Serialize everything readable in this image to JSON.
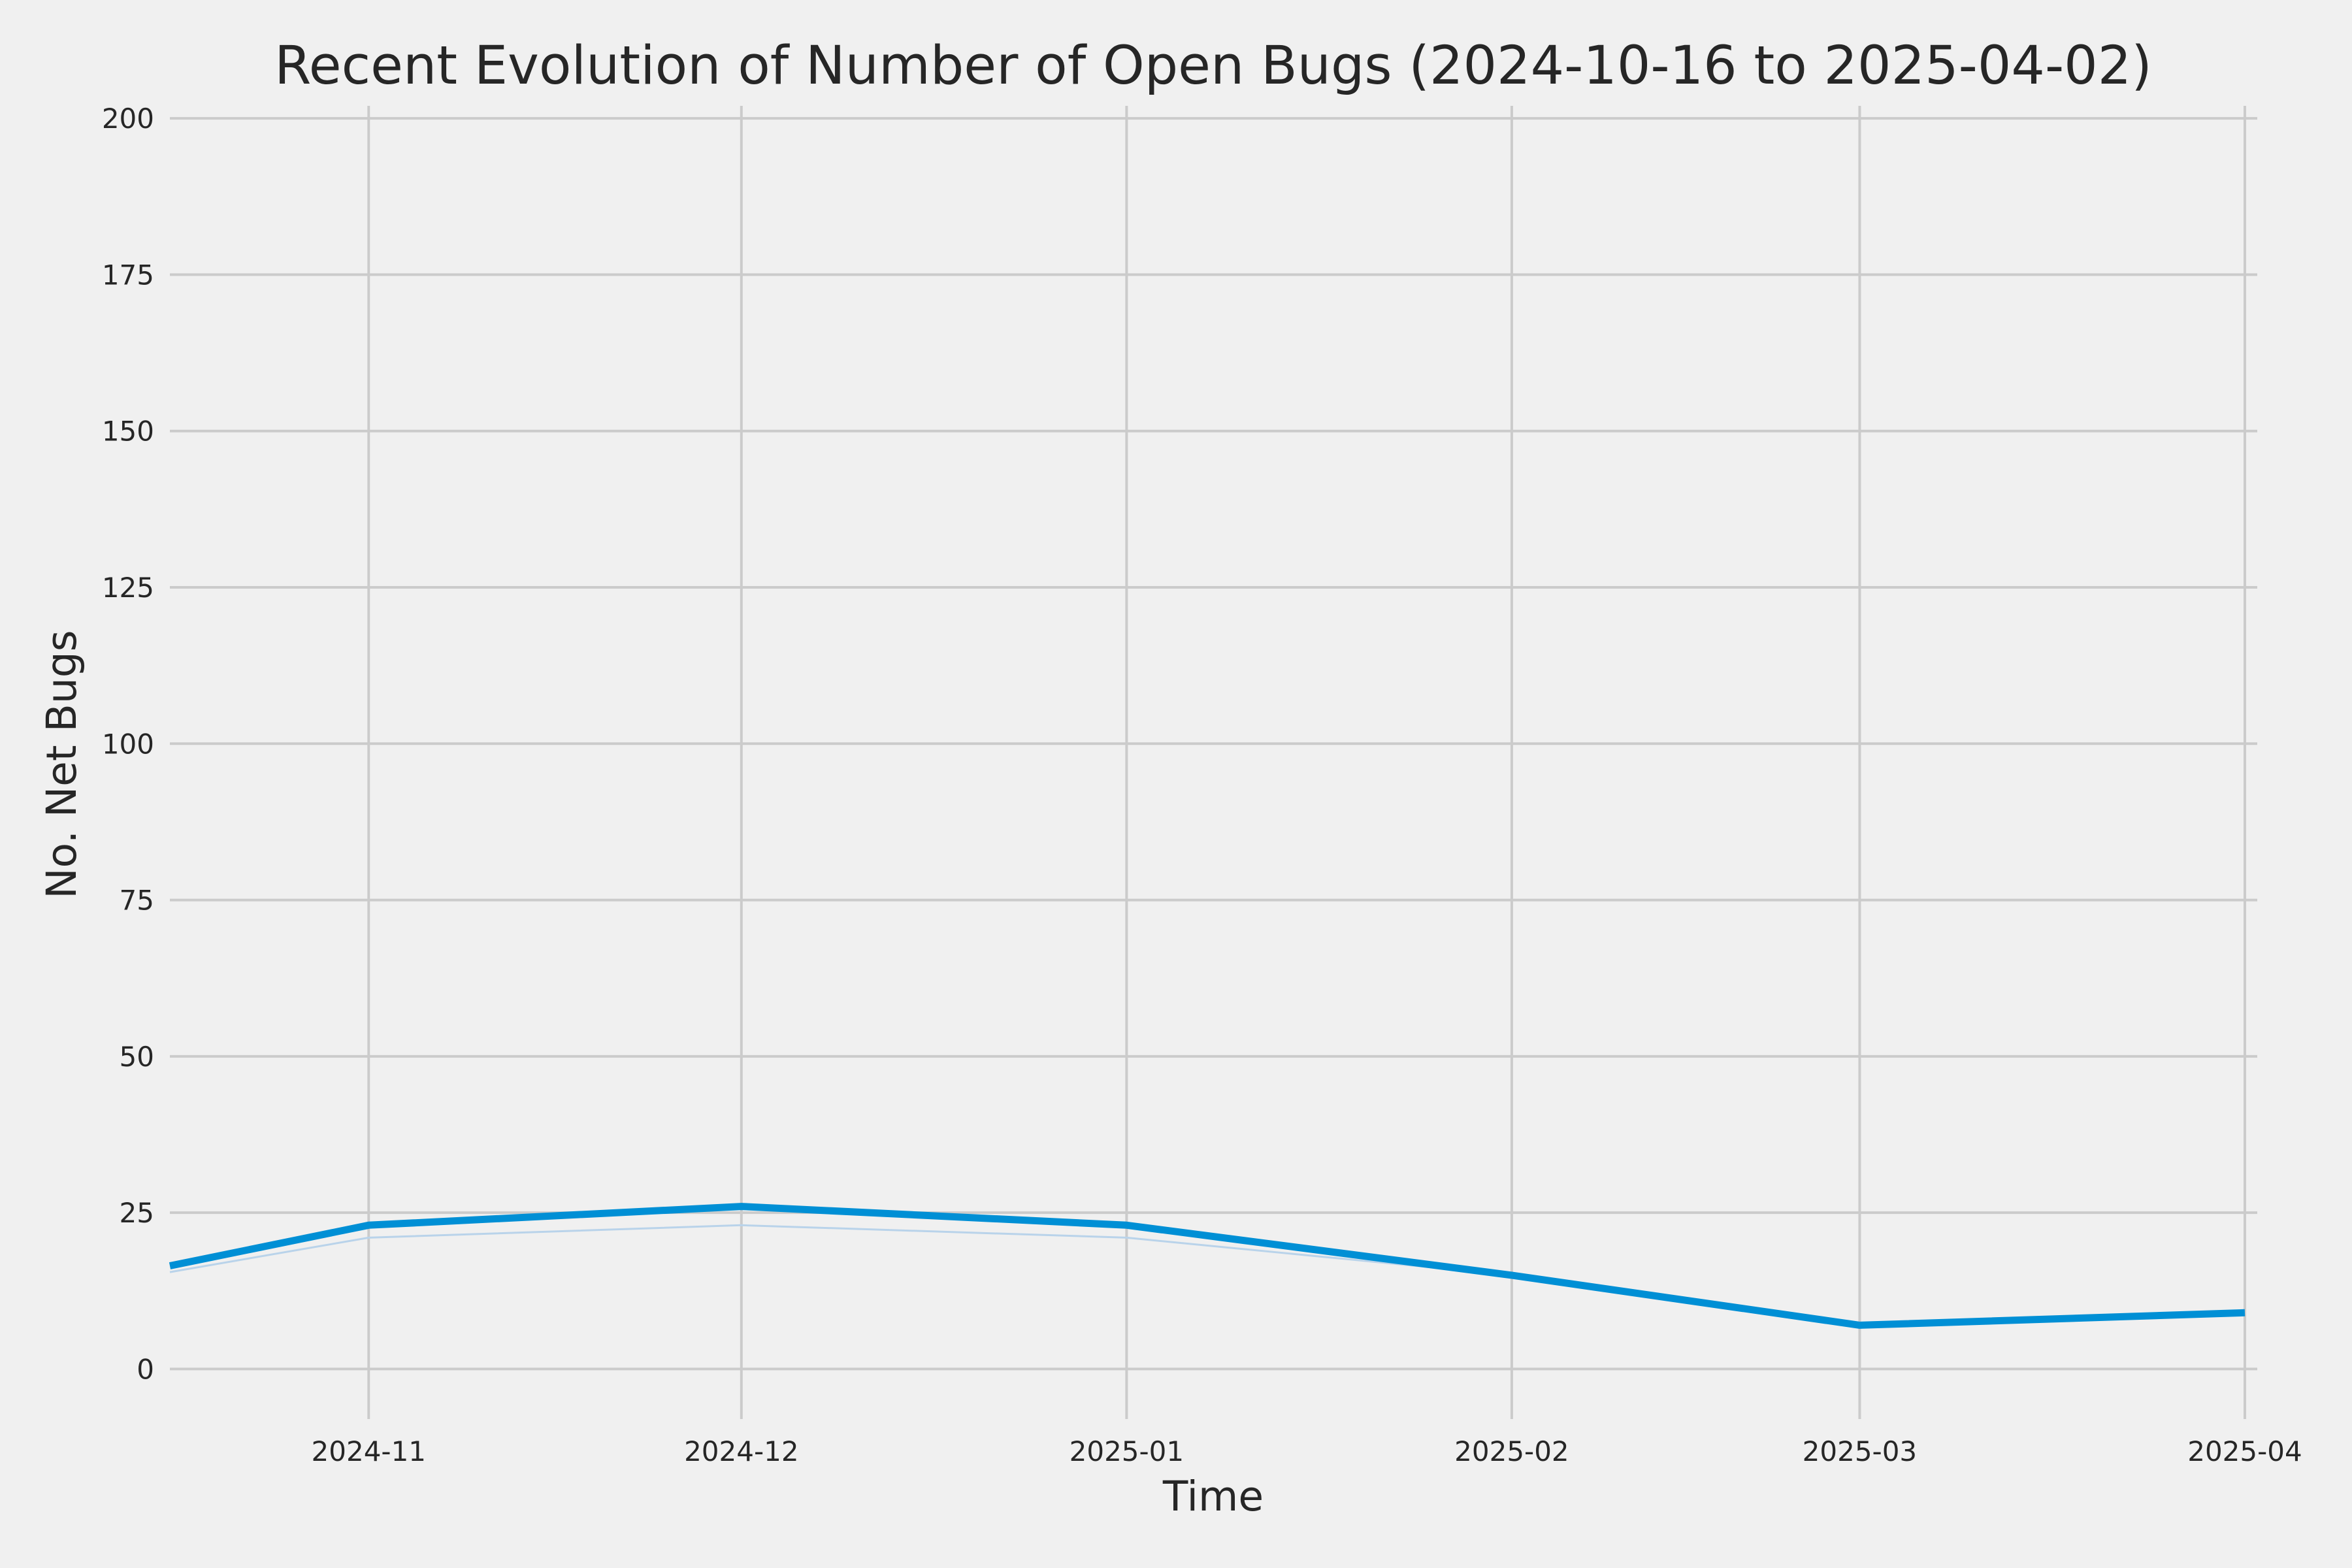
{
  "chart_data": {
    "type": "line",
    "title": "Recent Evolution of Number of Open Bugs (2024-10-16 to 2025-04-02)",
    "xlabel": "Time",
    "ylabel": "No. Net Bugs",
    "x_ticks": [
      "2024-11",
      "2024-12",
      "2025-01",
      "2025-02",
      "2025-03",
      "2025-04"
    ],
    "y_ticks": [
      0,
      25,
      50,
      75,
      100,
      125,
      150,
      175,
      200
    ],
    "xlim": [
      "2024-10-16",
      "2025-04-02"
    ],
    "ylim": [
      -8,
      202
    ],
    "grid": true,
    "series": [
      {
        "role": "main",
        "color": "#008fd5",
        "points": [
          {
            "x": "2024-10-16",
            "y": 16.5
          },
          {
            "x": "2024-11-01",
            "y": 23
          },
          {
            "x": "2024-12-01",
            "y": 26
          },
          {
            "x": "2025-01-01",
            "y": 23
          },
          {
            "x": "2025-02-01",
            "y": 15
          },
          {
            "x": "2025-03-01",
            "y": 7
          },
          {
            "x": "2025-04-01",
            "y": 9
          }
        ]
      },
      {
        "role": "faint",
        "color": "#b9d3ea",
        "points": [
          {
            "x": "2024-10-16",
            "y": 15.5
          },
          {
            "x": "2024-11-01",
            "y": 21
          },
          {
            "x": "2024-12-01",
            "y": 23
          },
          {
            "x": "2025-01-01",
            "y": 21
          },
          {
            "x": "2025-02-01",
            "y": 15
          },
          {
            "x": "2025-03-01",
            "y": 7
          },
          {
            "x": "2025-04-01",
            "y": 9
          }
        ]
      }
    ]
  }
}
